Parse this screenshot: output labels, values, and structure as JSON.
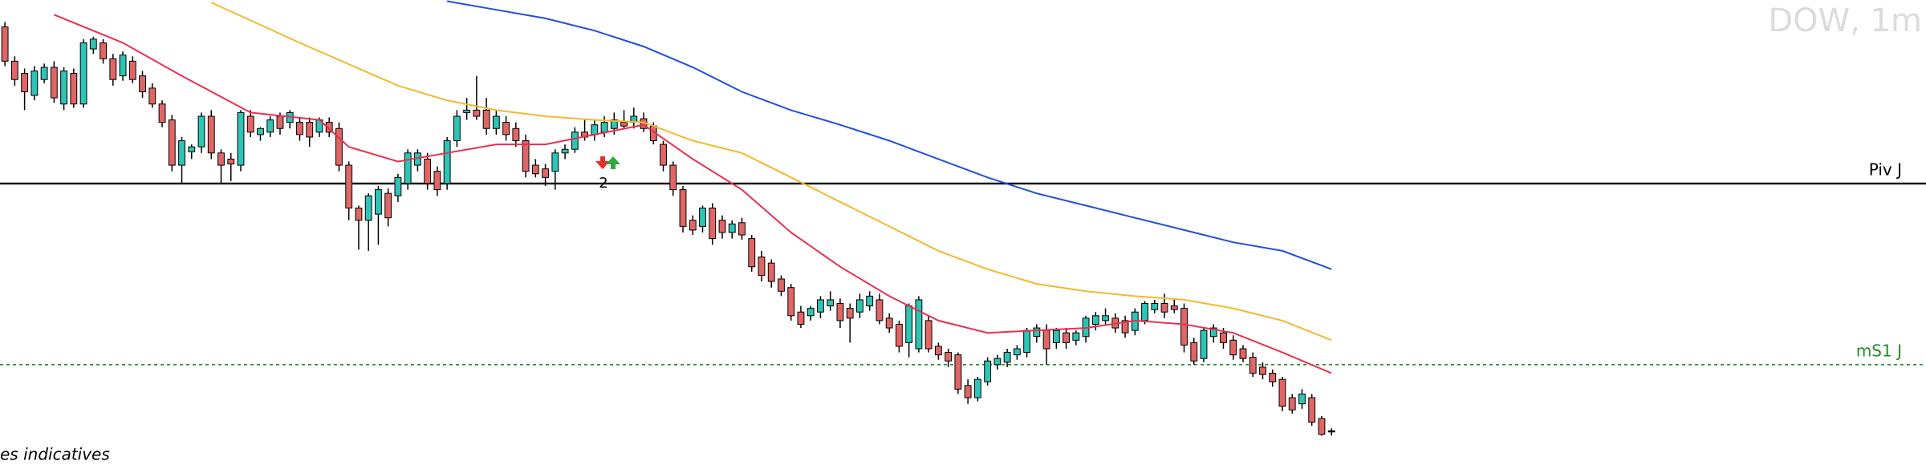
{
  "chart_data": {
    "type": "candlestick",
    "title": "DOW, 1m",
    "footer": "es indicatives",
    "xlim": [
      -0.5,
      195.5
    ],
    "ylim": [
      0,
      380
    ],
    "up_color": "#2ec4b6",
    "down_color": "#e06666",
    "ohlc": [
      [
        358,
        362,
        326,
        330
      ],
      [
        330,
        334,
        310,
        315
      ],
      [
        320,
        324,
        290,
        305
      ],
      [
        302,
        326,
        298,
        322
      ],
      [
        315,
        328,
        312,
        325
      ],
      [
        325,
        330,
        296,
        300
      ],
      [
        295,
        325,
        290,
        322
      ],
      [
        320,
        324,
        292,
        295
      ],
      [
        295,
        348,
        292,
        345
      ],
      [
        340,
        350,
        336,
        348
      ],
      [
        345,
        348,
        328,
        332
      ],
      [
        332,
        336,
        310,
        315
      ],
      [
        318,
        338,
        314,
        335
      ],
      [
        330,
        334,
        312,
        315
      ],
      [
        318,
        322,
        300,
        305
      ],
      [
        308,
        312,
        292,
        295
      ],
      [
        295,
        298,
        276,
        280
      ],
      [
        282,
        286,
        240,
        245
      ],
      [
        245,
        268,
        230,
        265
      ],
      [
        256,
        262,
        250,
        260
      ],
      [
        260,
        288,
        255,
        285
      ],
      [
        285,
        290,
        250,
        255
      ],
      [
        255,
        258,
        230,
        245
      ],
      [
        250,
        255,
        232,
        246
      ],
      [
        245,
        290,
        240,
        288
      ],
      [
        285,
        290,
        268,
        272
      ],
      [
        270,
        276,
        265,
        275
      ],
      [
        272,
        285,
        268,
        282
      ],
      [
        285,
        288,
        270,
        275
      ],
      [
        280,
        290,
        275,
        288
      ],
      [
        280,
        284,
        265,
        270
      ],
      [
        280,
        284,
        260,
        268
      ],
      [
        272,
        284,
        268,
        282
      ],
      [
        280,
        284,
        268,
        272
      ],
      [
        275,
        280,
        240,
        245
      ],
      [
        245,
        248,
        200,
        210
      ],
      [
        210,
        212,
        176,
        200
      ],
      [
        200,
        222,
        175,
        220
      ],
      [
        205,
        228,
        180,
        225
      ],
      [
        222,
        226,
        195,
        202
      ],
      [
        220,
        238,
        215,
        235
      ],
      [
        230,
        258,
        225,
        255
      ],
      [
        245,
        258,
        240,
        255
      ],
      [
        250,
        255,
        225,
        230
      ],
      [
        240,
        244,
        220,
        225
      ],
      [
        230,
        268,
        225,
        265
      ],
      [
        265,
        290,
        260,
        285
      ],
      [
        288,
        300,
        282,
        290
      ],
      [
        290,
        318,
        282,
        285
      ],
      [
        290,
        300,
        270,
        275
      ],
      [
        275,
        290,
        270,
        285
      ],
      [
        280,
        285,
        265,
        270
      ],
      [
        275,
        280,
        260,
        265
      ],
      [
        265,
        270,
        235,
        240
      ],
      [
        245,
        250,
        235,
        238
      ],
      [
        242,
        246,
        228,
        235
      ],
      [
        240,
        258,
        225,
        255
      ],
      [
        255,
        262,
        250,
        258
      ],
      [
        258,
        276,
        255,
        272
      ],
      [
        272,
        282,
        265,
        268
      ],
      [
        270,
        282,
        265,
        278
      ],
      [
        272,
        285,
        268,
        280
      ],
      [
        275,
        288,
        270,
        282
      ],
      [
        280,
        290,
        275,
        277
      ],
      [
        280,
        292,
        275,
        285
      ],
      [
        283,
        288,
        272,
        275
      ],
      [
        277,
        280,
        262,
        265
      ],
      [
        262,
        265,
        240,
        245
      ],
      [
        245,
        248,
        220,
        225
      ],
      [
        225,
        228,
        190,
        195
      ],
      [
        200,
        204,
        188,
        192
      ],
      [
        195,
        212,
        190,
        210
      ],
      [
        210,
        214,
        180,
        185
      ],
      [
        200,
        204,
        185,
        190
      ],
      [
        190,
        200,
        185,
        197
      ],
      [
        198,
        202,
        184,
        188
      ],
      [
        185,
        188,
        158,
        162
      ],
      [
        170,
        175,
        150,
        155
      ],
      [
        165,
        168,
        145,
        150
      ],
      [
        152,
        155,
        138,
        142
      ],
      [
        145,
        148,
        118,
        122
      ],
      [
        125,
        130,
        112,
        115
      ],
      [
        122,
        130,
        118,
        128
      ],
      [
        125,
        138,
        120,
        135
      ],
      [
        130,
        142,
        126,
        135
      ],
      [
        132,
        136,
        112,
        118
      ],
      [
        128,
        132,
        100,
        120
      ],
      [
        125,
        140,
        120,
        135
      ],
      [
        130,
        142,
        126,
        138
      ],
      [
        135,
        140,
        115,
        118
      ],
      [
        120,
        124,
        108,
        112
      ],
      [
        115,
        118,
        92,
        97
      ],
      [
        100,
        132,
        88,
        130
      ],
      [
        95,
        138,
        92,
        135
      ],
      [
        118,
        122,
        92,
        95
      ],
      [
        97,
        100,
        86,
        90
      ],
      [
        92,
        95,
        80,
        85
      ],
      [
        90,
        92,
        58,
        62
      ],
      [
        65,
        70,
        50,
        55
      ],
      [
        55,
        72,
        52,
        70
      ],
      [
        68,
        88,
        65,
        85
      ],
      [
        82,
        90,
        78,
        87
      ],
      [
        84,
        95,
        80,
        92
      ],
      [
        90,
        98,
        86,
        95
      ],
      [
        92,
        112,
        88,
        110
      ],
      [
        105,
        115,
        100,
        112
      ],
      [
        110,
        115,
        82,
        95
      ],
      [
        100,
        112,
        95,
        110
      ],
      [
        108,
        112,
        95,
        100
      ],
      [
        102,
        110,
        98,
        108
      ],
      [
        105,
        122,
        100,
        120
      ],
      [
        115,
        125,
        110,
        122
      ],
      [
        118,
        128,
        115,
        122
      ],
      [
        120,
        124,
        108,
        112
      ],
      [
        118,
        122,
        104,
        108
      ],
      [
        110,
        128,
        106,
        125
      ],
      [
        118,
        134,
        115,
        132
      ],
      [
        127,
        135,
        124,
        132
      ],
      [
        132,
        140,
        120,
        125
      ],
      [
        130,
        136,
        124,
        127
      ],
      [
        128,
        132,
        92,
        98
      ],
      [
        100,
        104,
        82,
        85
      ],
      [
        87,
        112,
        84,
        110
      ],
      [
        105,
        115,
        100,
        112
      ],
      [
        108,
        112,
        95,
        100
      ],
      [
        102,
        106,
        86,
        90
      ],
      [
        95,
        98,
        84,
        87
      ],
      [
        88,
        92,
        72,
        75
      ],
      [
        80,
        84,
        70,
        74
      ],
      [
        75,
        78,
        64,
        68
      ],
      [
        70,
        72,
        44,
        48
      ],
      [
        55,
        58,
        42,
        45
      ],
      [
        50,
        62,
        46,
        58
      ],
      [
        55,
        58,
        32,
        35
      ],
      [
        38,
        40,
        24,
        25
      ],
      [
        28,
        30,
        24,
        28
      ]
    ],
    "series": [
      {
        "color": "#e8314f",
        "x": [
          5,
          12,
          18,
          25,
          32,
          35,
          40,
          45,
          50,
          55,
          60,
          65,
          70,
          75,
          80,
          85,
          90,
          95,
          100,
          105,
          110,
          115,
          120,
          125,
          130,
          135
        ],
        "values": [
          368,
          345,
          318,
          288,
          282,
          260,
          248,
          255,
          262,
          262,
          270,
          278,
          250,
          225,
          190,
          162,
          138,
          118,
          108,
          110,
          112,
          118,
          115,
          108,
          92,
          75
        ]
      },
      {
        "color": "#f5b82e",
        "x": [
          21,
          30,
          40,
          45,
          50,
          55,
          60,
          65,
          70,
          75,
          80,
          85,
          90,
          95,
          100,
          105,
          110,
          115,
          120,
          125,
          130,
          135
        ],
        "values": [
          378,
          345,
          310,
          298,
          290,
          285,
          282,
          280,
          265,
          255,
          235,
          215,
          195,
          175,
          160,
          148,
          142,
          138,
          135,
          128,
          118,
          102
        ]
      },
      {
        "color": "#1f4fe0",
        "x": [
          45,
          50,
          55,
          60,
          65,
          70,
          75,
          80,
          85,
          90,
          95,
          100,
          105,
          110,
          115,
          120,
          125,
          130,
          135
        ],
        "values": [
          379,
          372,
          365,
          355,
          342,
          325,
          305,
          290,
          278,
          265,
          250,
          235,
          222,
          212,
          202,
          192,
          182,
          175,
          160
        ]
      }
    ],
    "hlines": [
      {
        "label": "Piv J",
        "value": 230,
        "color": "#000000",
        "dashed": false
      },
      {
        "label": "mS1 J",
        "value": 82,
        "color": "#2a8a2a",
        "dashed": true
      }
    ],
    "annotations": [
      {
        "text": "2"
      }
    ]
  }
}
